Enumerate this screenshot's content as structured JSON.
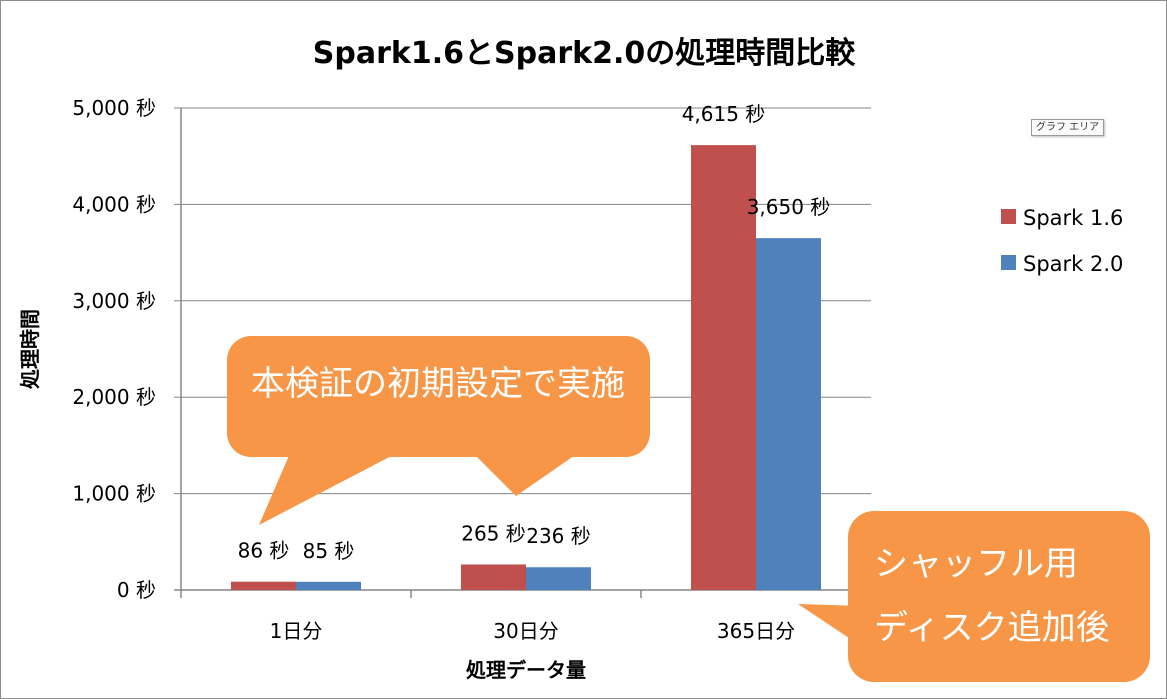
{
  "chart_data": {
    "type": "bar",
    "title": "Spark1.6とSpark2.0の処理時間比較",
    "xlabel": "処理データ量",
    "ylabel": "処理時間",
    "categories": [
      "1日分",
      "30日分",
      "365日分"
    ],
    "series": [
      {
        "name": "Spark 1.6",
        "values": [
          86,
          265,
          4615
        ],
        "color": "#c0504d",
        "data_labels": [
          "86 秒",
          "265 秒",
          "4,615 秒"
        ]
      },
      {
        "name": "Spark 2.0",
        "values": [
          85,
          236,
          3650
        ],
        "color": "#4f81bd",
        "data_labels": [
          "85 秒",
          "236 秒",
          "3,650 秒"
        ]
      }
    ],
    "ylim": [
      0,
      5000
    ],
    "y_ticks": [
      0,
      1000,
      2000,
      3000,
      4000,
      5000
    ],
    "y_tick_labels": [
      "0 秒",
      "1,000 秒",
      "2,000 秒",
      "3,000 秒",
      "4,000 秒",
      "5,000 秒"
    ],
    "grid": true,
    "legend_position": "right",
    "annotations": [
      {
        "text": "本検証の初期設定で実施",
        "color": "#f79646"
      },
      {
        "lines": [
          "シャッフル用",
          "ディスク追加後"
        ],
        "color": "#f79646"
      }
    ]
  },
  "badge": "グラフ エリア"
}
